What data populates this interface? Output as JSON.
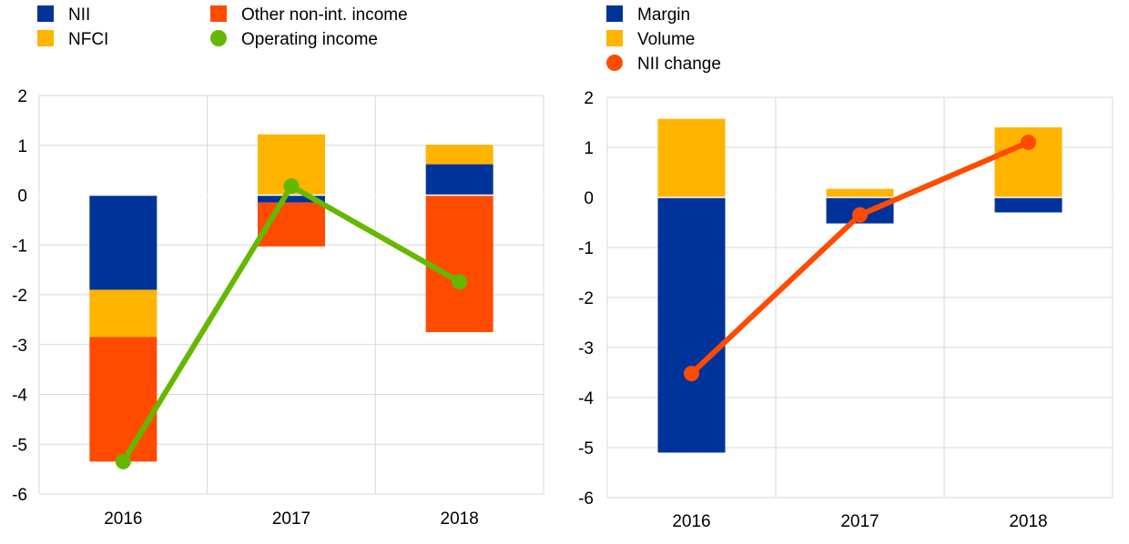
{
  "chart_data": [
    {
      "type": "bar",
      "stacked": true,
      "categories": [
        "2016",
        "2017",
        "2018"
      ],
      "ylim": [
        -6,
        2
      ],
      "yticks": [
        2,
        1,
        0,
        -1,
        -2,
        -3,
        -4,
        -5,
        -6
      ],
      "grid": true,
      "legend_position": "top",
      "series": [
        {
          "name": "NII",
          "kind": "bar",
          "color": "#003399",
          "values": [
            -1.9,
            -0.15,
            0.62
          ]
        },
        {
          "name": "NFCI",
          "kind": "bar",
          "color": "#FFB400",
          "values": [
            -0.95,
            1.22,
            0.39
          ]
        },
        {
          "name": "Other non-int. income",
          "kind": "bar",
          "color": "#FF4B00",
          "values": [
            -2.5,
            -0.88,
            -2.75
          ]
        },
        {
          "name": "Operating income",
          "kind": "line",
          "color": "#65B800",
          "values": [
            -5.35,
            0.18,
            -1.74
          ]
        }
      ]
    },
    {
      "type": "bar",
      "stacked": true,
      "categories": [
        "2016",
        "2017",
        "2018"
      ],
      "ylim": [
        -6,
        2
      ],
      "yticks": [
        2,
        1,
        0,
        -1,
        -2,
        -3,
        -4,
        -5,
        -6
      ],
      "grid": true,
      "legend_position": "top",
      "series": [
        {
          "name": "Margin",
          "kind": "bar",
          "color": "#003399",
          "values": [
            -5.1,
            -0.52,
            -0.3
          ]
        },
        {
          "name": "Volume",
          "kind": "bar",
          "color": "#FFB400",
          "values": [
            1.57,
            0.17,
            1.4
          ]
        },
        {
          "name": "NII change",
          "kind": "line",
          "color": "#FF4B00",
          "values": [
            -3.52,
            -0.35,
            1.1
          ]
        }
      ]
    }
  ]
}
